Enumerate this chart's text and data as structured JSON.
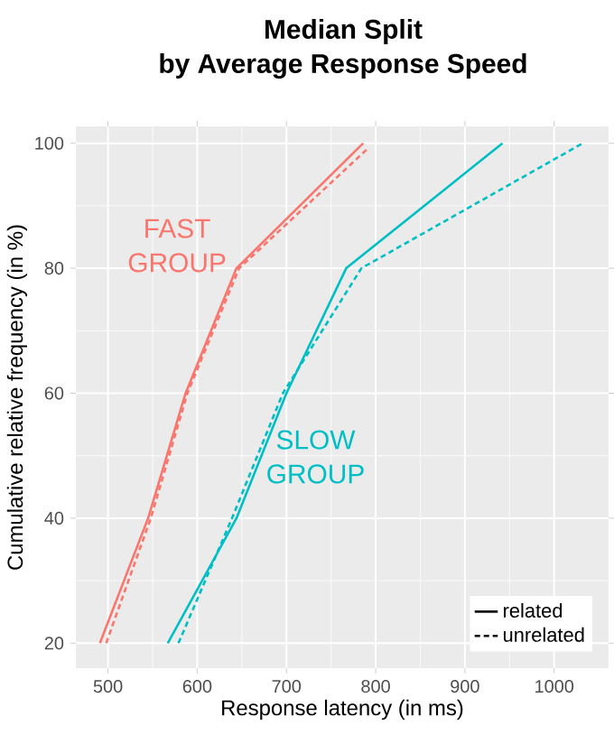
{
  "chart_data": {
    "type": "line",
    "title": "Median Split",
    "subtitle": "by Average Response Speed",
    "xlabel": "Response latency (in ms)",
    "ylabel": "Cumulative relative frequency (in %)",
    "xlim": [
      464,
      1061
    ],
    "ylim": [
      16,
      102.7
    ],
    "xticks": [
      500,
      600,
      700,
      800,
      900,
      1000
    ],
    "yticks": [
      20,
      40,
      60,
      80,
      100
    ],
    "grid": true,
    "legend": "bottom right",
    "marker": "none",
    "annotations": [
      "FAST GROUP",
      "SLOW GROUP"
    ],
    "series": [
      {
        "name": "related",
        "color": "#f8766d",
        "line_style": "solid",
        "x": [
          491,
          545,
          587,
          644,
          786
        ],
        "values": [
          20,
          40,
          60,
          80,
          100
        ]
      },
      {
        "name": "unrelated",
        "color": "#f8766d",
        "line_style": "dashed",
        "x": [
          498,
          548,
          589,
          647,
          790
        ],
        "values": [
          20,
          40,
          60,
          80,
          99
        ]
      },
      {
        "color": "#00bfc4",
        "line_style": "solid",
        "x": [
          567,
          644,
          700,
          767,
          942
        ],
        "values": [
          20,
          40,
          60,
          80,
          100
        ]
      },
      {
        "color": "#00bfc4",
        "line_style": "dashed",
        "x": [
          579,
          639,
          696,
          784,
          1032
        ],
        "values": [
          20,
          40,
          60,
          80,
          100
        ]
      }
    ]
  }
}
